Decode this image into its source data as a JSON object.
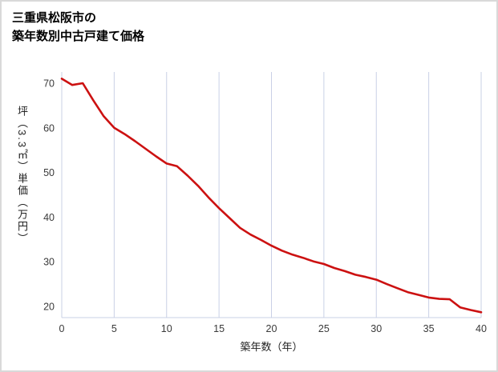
{
  "title": {
    "line1": "三重県松阪市の",
    "line2": "築年数別中古戸建て価格"
  },
  "chart_data": {
    "type": "line",
    "title": "三重県松阪市の築年数別中古戸建て価格",
    "xlabel": "築年数（年）",
    "ylabel": "坪（3.3㎡）単価（万円）",
    "x": [
      0,
      1,
      2,
      3,
      4,
      5,
      6,
      7,
      8,
      9,
      10,
      11,
      12,
      13,
      14,
      15,
      16,
      17,
      18,
      19,
      20,
      21,
      22,
      23,
      24,
      25,
      26,
      27,
      28,
      29,
      30,
      31,
      32,
      33,
      34,
      35,
      36,
      37,
      38,
      39,
      40
    ],
    "values": [
      71,
      69.6,
      70,
      66.2,
      62.6,
      60,
      58.6,
      57,
      55.3,
      53.6,
      52,
      51.4,
      49.3,
      47,
      44.4,
      42,
      39.8,
      37.6,
      36.1,
      34.9,
      33.6,
      32.5,
      31.6,
      30.9,
      30.1,
      29.5,
      28.6,
      27.9,
      27.1,
      26.6,
      26,
      25,
      24.1,
      23.2,
      22.6,
      22,
      21.7,
      21.6,
      19.8,
      19.2,
      18.7
    ],
    "xlim": [
      0,
      40
    ],
    "ylim": [
      17.5,
      72.5
    ],
    "xticks": [
      0,
      5,
      10,
      15,
      20,
      25,
      30,
      35,
      40
    ],
    "yticks": [
      20,
      30,
      40,
      50,
      60,
      70
    ],
    "grid": "vertical-only",
    "legend": "none",
    "line_color": "#cc1111",
    "grid_color": "#c9d0e6",
    "axis_color": "#c9d0e6",
    "tick_color": "#3a3a3a"
  }
}
